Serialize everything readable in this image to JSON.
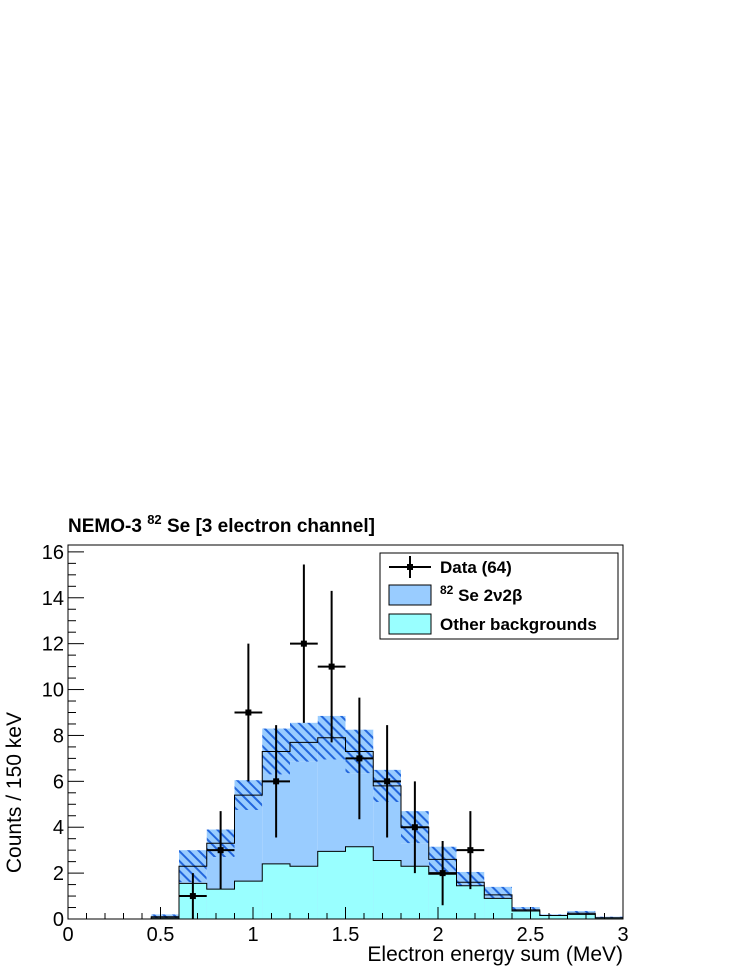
{
  "chart_data": {
    "type": "histogram",
    "title_main": "NEMO-3",
    "title_sup": "82",
    "title_rest": "Se [3 electron channel]",
    "xlabel": "Electron energy sum (MeV)",
    "ylabel": "Counts / 150 keV",
    "xlim": [
      0,
      3
    ],
    "ylim": [
      0,
      16.3
    ],
    "x_ticks": [
      "0",
      "0.5",
      "1",
      "1.5",
      "2",
      "2.5",
      "3"
    ],
    "y_ticks": [
      "0",
      "2",
      "4",
      "6",
      "8",
      "10",
      "12",
      "14",
      "16"
    ],
    "bin_edges": [
      0.45,
      0.6,
      0.75,
      0.9,
      1.05,
      1.2,
      1.35,
      1.5,
      1.65,
      1.8,
      1.95,
      2.1,
      2.25,
      2.4,
      2.55,
      2.7,
      2.85,
      3.0
    ],
    "series": [
      {
        "name": "Other backgrounds",
        "kind": "filled",
        "color": "#99ffff",
        "values": [
          0.05,
          1.55,
          1.3,
          1.65,
          2.4,
          2.3,
          2.95,
          3.15,
          2.55,
          2.3,
          1.95,
          1.45,
          0.9,
          0.35,
          0.15,
          0.2,
          0.05
        ]
      },
      {
        "name": "2ν2β",
        "label_sup": "82",
        "label_main": "Se 2ν2β",
        "kind": "stacked_total",
        "color": "#99ccff",
        "values": [
          0.1,
          2.3,
          3.3,
          5.4,
          7.3,
          7.7,
          7.9,
          7.3,
          5.8,
          4.0,
          2.6,
          1.6,
          1.05,
          0.4,
          0.15,
          0.25,
          0.05
        ],
        "uncertainty_band": [
          0.1,
          0.7,
          0.6,
          0.65,
          1.0,
          0.85,
          0.95,
          0.95,
          0.7,
          0.7,
          0.55,
          0.45,
          0.35,
          0.12,
          0.05,
          0.1,
          0.05
        ],
        "band_color": "#3377dd"
      },
      {
        "name": "Data (64)",
        "kind": "points",
        "color": "#000000",
        "points": [
          {
            "x": 0.675,
            "y": 1,
            "err": 1.0
          },
          {
            "x": 0.825,
            "y": 3,
            "err": 1.7
          },
          {
            "x": 0.975,
            "y": 9,
            "err": 3.0
          },
          {
            "x": 1.125,
            "y": 6,
            "err": 2.45
          },
          {
            "x": 1.275,
            "y": 12,
            "err": 3.45
          },
          {
            "x": 1.425,
            "y": 11,
            "err": 3.3
          },
          {
            "x": 1.575,
            "y": 7,
            "err": 2.65
          },
          {
            "x": 1.725,
            "y": 6,
            "err": 2.45
          },
          {
            "x": 1.875,
            "y": 4,
            "err": 2.0
          },
          {
            "x": 2.025,
            "y": 2,
            "err": 1.4
          },
          {
            "x": 2.175,
            "y": 3,
            "err": 1.7
          }
        ]
      }
    ],
    "legend": {
      "placement": "top-right",
      "entries": [
        {
          "label": "Data (64)",
          "kind": "points"
        },
        {
          "label_sup": "82",
          "label_main": "Se 2ν2β",
          "kind": "box",
          "color": "#99ccff"
        },
        {
          "label": "Other backgrounds",
          "kind": "box",
          "color": "#99ffff"
        }
      ]
    },
    "grid": false
  }
}
